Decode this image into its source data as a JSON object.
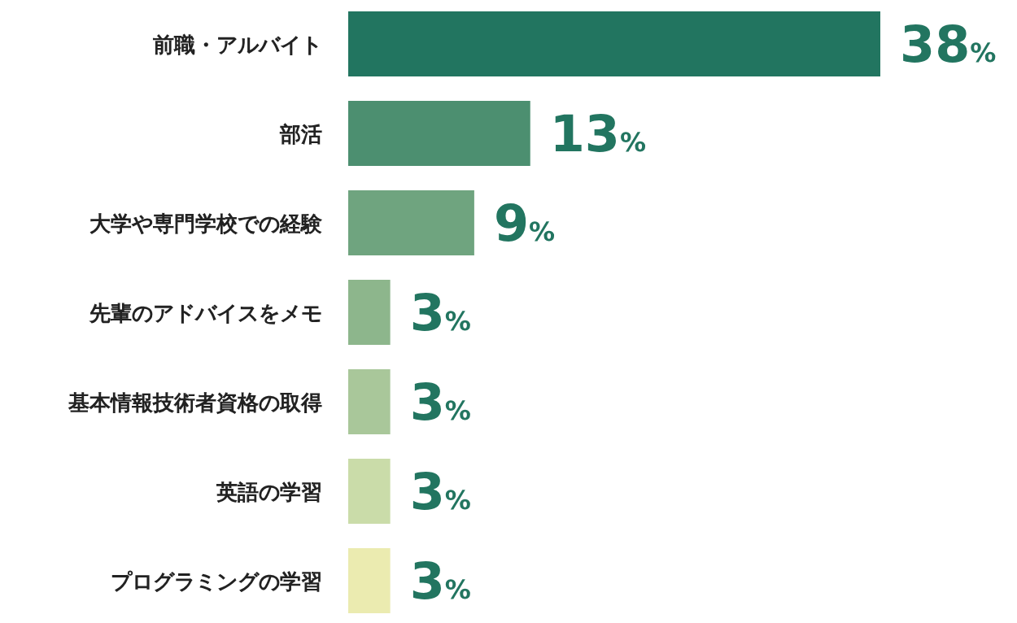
{
  "chart_data": {
    "type": "bar",
    "orientation": "horizontal",
    "categories": [
      "前職・アルバイト",
      "部活",
      "大学や専門学校での経験",
      "先輩のアドバイスをメモ",
      "基本情報技術者資格の取得",
      "英語の学習",
      "プログラミングの学習"
    ],
    "values": [
      38,
      13,
      9,
      3,
      3,
      3,
      3
    ],
    "value_labels": [
      "38%",
      "13%",
      "9%",
      "3%",
      "3%",
      "3%",
      "3%"
    ],
    "colors": [
      "#227560",
      "#4c8f70",
      "#6fa47f",
      "#8db68c",
      "#a9c79a",
      "#cadca9",
      "#ebebb0"
    ]
  }
}
